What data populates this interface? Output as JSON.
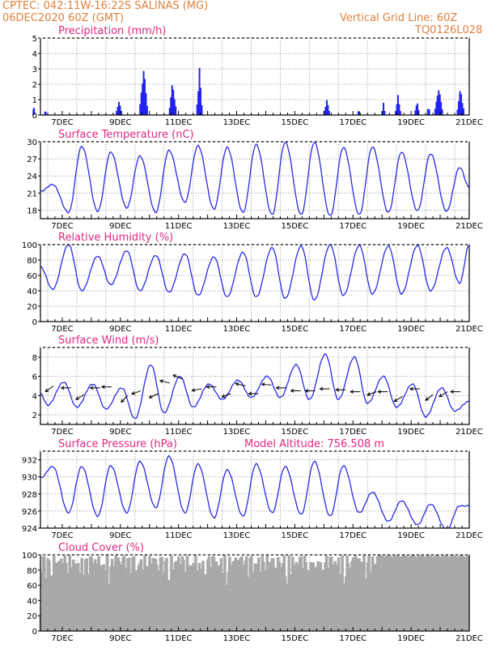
{
  "header": {
    "line1": "CPTEC:   042:11W-16:22S   SALINAS (MG)",
    "line2": "06DEC2020 60Z (GMT)",
    "right1": "Vertical Grid Line: 60Z",
    "right2": "TQ0126L028"
  },
  "colors": {
    "header": "#e0803a",
    "title": "#e2267f",
    "line": "#2929e6",
    "bar": "#2323f0",
    "cloud": "#a9a9a9",
    "grid": "#9a9a9a"
  },
  "chart_data": [
    {
      "type": "bar",
      "title": "Precipitation (mm/h)",
      "x_start": "06DEC2020 06Z",
      "x_end": "21DEC2020 00Z",
      "x_ticks": [
        "7DEC",
        "9DEC",
        "11DEC",
        "13DEC",
        "15DEC",
        "17DEC",
        "19DEC",
        "21DEC"
      ],
      "ylim": [
        0,
        5
      ],
      "yticks": [
        0,
        1,
        2,
        3,
        4,
        5
      ],
      "events": [
        {
          "day": 6.02,
          "width": 0.04,
          "value": 1.0
        },
        {
          "day": 6.42,
          "width": 0.05,
          "value": 0.5
        },
        {
          "day": 8.95,
          "width": 0.2,
          "value": 1.05
        },
        {
          "day": 9.8,
          "width": 0.28,
          "value": 3.4
        },
        {
          "day": 10.8,
          "width": 0.25,
          "value": 2.4
        },
        {
          "day": 11.72,
          "width": 0.2,
          "value": 3.1
        },
        {
          "day": 16.1,
          "width": 0.2,
          "value": 1.1
        },
        {
          "day": 17.2,
          "width": 0.06,
          "value": 0.5
        },
        {
          "day": 18.05,
          "width": 0.12,
          "value": 0.8
        },
        {
          "day": 18.55,
          "width": 0.2,
          "value": 1.3
        },
        {
          "day": 19.2,
          "width": 0.15,
          "value": 1.1
        },
        {
          "day": 19.6,
          "width": 0.1,
          "value": 0.8
        },
        {
          "day": 19.95,
          "width": 0.28,
          "value": 2.0
        },
        {
          "day": 20.7,
          "width": 0.25,
          "value": 1.9
        }
      ]
    },
    {
      "type": "line",
      "title": "Surface Temperature (nC)",
      "x_start": "06DEC2020 06Z",
      "x_end": "21DEC2020 00Z",
      "x_ticks": [
        "7DEC",
        "9DEC",
        "11DEC",
        "13DEC",
        "15DEC",
        "17DEC",
        "19DEC",
        "21DEC"
      ],
      "ylim": [
        16.5,
        30
      ],
      "yticks": [
        18,
        21,
        24,
        27,
        30
      ],
      "first_max_day": 6.67,
      "mins": [
        17.6,
        17.8,
        18.4,
        17.6,
        19.4,
        18.2,
        17.6,
        17.2,
        17.2,
        17.0,
        17.2,
        17.6,
        17.9,
        17.8,
        18.0
      ],
      "maxs": [
        22.5,
        29.2,
        28.2,
        27.5,
        28.5,
        29.3,
        29.0,
        29.5,
        29.9,
        29.9,
        29.0,
        29.1,
        28.2,
        27.9,
        25.5
      ],
      "end_value": 22.0
    },
    {
      "type": "line",
      "title": "Relative Humidity (%)",
      "x_start": "06DEC2020 06Z",
      "x_end": "21DEC2020 00Z",
      "x_ticks": [
        "7DEC",
        "9DEC",
        "11DEC",
        "13DEC",
        "15DEC",
        "17DEC",
        "19DEC",
        "21DEC"
      ],
      "ylim": [
        0,
        100
      ],
      "yticks": [
        0,
        20,
        40,
        60,
        80,
        100
      ],
      "first_min_day": 6.67,
      "mins": [
        42,
        40,
        48,
        40,
        38,
        34,
        32,
        32,
        30,
        28,
        34,
        36,
        36,
        40,
        50
      ],
      "maxs": [
        100,
        85,
        92,
        86,
        88,
        84,
        90,
        96,
        98,
        100,
        99,
        98,
        99,
        96,
        88
      ],
      "end_value": 100
    },
    {
      "type": "line",
      "title": "Surface Wind (m/s)",
      "x_start": "06DEC2020 06Z",
      "x_end": "21DEC2020 00Z",
      "x_ticks": [
        "7DEC",
        "9DEC",
        "11DEC",
        "13DEC",
        "15DEC",
        "17DEC",
        "19DEC",
        "21DEC"
      ],
      "ylim": [
        1,
        9
      ],
      "yticks": [
        2,
        4,
        6,
        8
      ],
      "first_min_day": 6.5,
      "mins": [
        3.0,
        2.8,
        2.6,
        1.6,
        2.2,
        2.8,
        3.6,
        3.8,
        3.8,
        3.6,
        3.6,
        3.2,
        2.8,
        1.8,
        2.4
      ],
      "maxs": [
        5.4,
        5.2,
        4.8,
        7.2,
        6.0,
        5.2,
        5.6,
        6.0,
        7.2,
        8.3,
        8.0,
        6.0,
        5.2,
        4.8,
        6.8
      ],
      "end_value": 3.4,
      "arrows": [
        {
          "day": 6.7,
          "y": 5.0,
          "dx": -10,
          "dy": 7
        },
        {
          "day": 7.3,
          "y": 4.8,
          "dx": -12,
          "dy": 0
        },
        {
          "day": 7.75,
          "y": 4.1,
          "dx": -10,
          "dy": 6
        },
        {
          "day": 8.3,
          "y": 4.8,
          "dx": -12,
          "dy": 0
        },
        {
          "day": 8.7,
          "y": 4.9,
          "dx": -12,
          "dy": 0
        },
        {
          "day": 9.25,
          "y": 4.0,
          "dx": -8,
          "dy": 8
        },
        {
          "day": 9.7,
          "y": 4.5,
          "dx": -11,
          "dy": 4
        },
        {
          "day": 10.3,
          "y": 4.2,
          "dx": -11,
          "dy": 5
        },
        {
          "day": 10.7,
          "y": 5.3,
          "dx": -12,
          "dy": -3
        },
        {
          "day": 11.15,
          "y": 5.7,
          "dx": -12,
          "dy": -5
        },
        {
          "day": 11.8,
          "y": 4.7,
          "dx": -12,
          "dy": 2
        },
        {
          "day": 12.3,
          "y": 4.9,
          "dx": -12,
          "dy": 0
        },
        {
          "day": 12.8,
          "y": 4.2,
          "dx": -11,
          "dy": 4
        },
        {
          "day": 13.3,
          "y": 5.0,
          "dx": -12,
          "dy": -3
        },
        {
          "day": 13.75,
          "y": 4.2,
          "dx": -12,
          "dy": 0
        },
        {
          "day": 14.2,
          "y": 5.1,
          "dx": -12,
          "dy": -1
        },
        {
          "day": 14.7,
          "y": 4.8,
          "dx": -12,
          "dy": 0
        },
        {
          "day": 15.2,
          "y": 4.5,
          "dx": -12,
          "dy": 0
        },
        {
          "day": 15.7,
          "y": 4.5,
          "dx": -12,
          "dy": 0
        },
        {
          "day": 16.2,
          "y": 4.7,
          "dx": -12,
          "dy": 0
        },
        {
          "day": 16.75,
          "y": 4.6,
          "dx": -12,
          "dy": 0
        },
        {
          "day": 17.25,
          "y": 4.4,
          "dx": -12,
          "dy": 0
        },
        {
          "day": 17.8,
          "y": 4.4,
          "dx": -11,
          "dy": 4
        },
        {
          "day": 18.2,
          "y": 4.4,
          "dx": -12,
          "dy": 0
        },
        {
          "day": 18.7,
          "y": 3.9,
          "dx": -10,
          "dy": 6
        },
        {
          "day": 19.3,
          "y": 4.7,
          "dx": -12,
          "dy": 0
        },
        {
          "day": 19.75,
          "y": 4.1,
          "dx": -9,
          "dy": 7
        },
        {
          "day": 20.25,
          "y": 4.4,
          "dx": -10,
          "dy": 6
        },
        {
          "day": 20.7,
          "y": 4.4,
          "dx": -12,
          "dy": 0
        }
      ]
    },
    {
      "type": "line",
      "title": "Surface Pressure (hPa)",
      "subtitle": "Model Altitude: 756.508 m",
      "x_start": "06DEC2020 06Z",
      "x_end": "21DEC2020 00Z",
      "x_ticks": [
        "7DEC",
        "9DEC",
        "11DEC",
        "13DEC",
        "15DEC",
        "17DEC",
        "19DEC",
        "21DEC"
      ],
      "ylim": [
        924,
        933
      ],
      "yticks": [
        924,
        926,
        928,
        930,
        932
      ],
      "first_max_day": 6.67,
      "mins": [
        925.8,
        925.4,
        925.8,
        926.4,
        925.8,
        925.2,
        925.4,
        925.8,
        925.6,
        925.4,
        925.8,
        924.8,
        924.4,
        923.8,
        923.9
      ],
      "maxs": [
        931.2,
        931.2,
        931.3,
        931.8,
        932.4,
        931.5,
        930.8,
        931.5,
        931.2,
        931.8,
        931.3,
        928.2,
        927.2,
        926.8,
        926.6
      ],
      "end_value": 926.6
    },
    {
      "type": "bar",
      "title": "Cloud Cover (%)",
      "x_start": "06DEC2020 06Z",
      "x_end": "21DEC2020 00Z",
      "x_ticks": [
        "7DEC",
        "9DEC",
        "11DEC",
        "13DEC",
        "15DEC",
        "17DEC",
        "19DEC",
        "21DEC"
      ],
      "ylim": [
        0,
        100
      ],
      "yticks": [
        0,
        20,
        40,
        60,
        80,
        100
      ],
      "step_hours": 1,
      "typical_range": [
        60,
        100
      ],
      "full_cover_after_day": 17.8
    }
  ]
}
